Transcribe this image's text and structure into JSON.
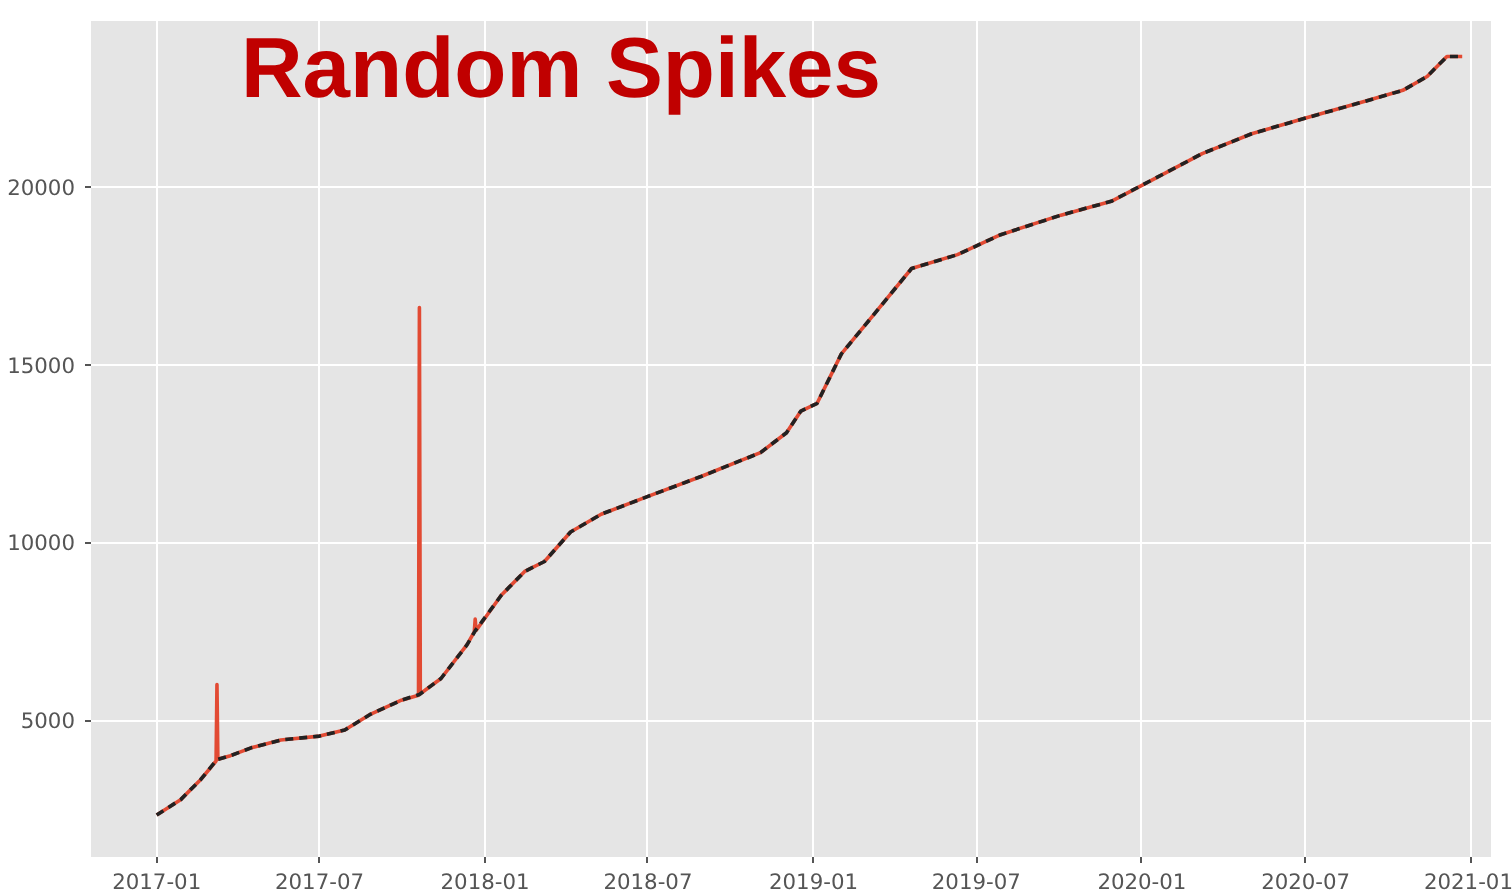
{
  "chart_data": {
    "type": "line",
    "title": "Random Spikes",
    "xlim": [
      "2016-10-20",
      "2021-01-23"
    ],
    "ylim": [
      1150,
      24660
    ],
    "xticks": [
      "2017-01",
      "2017-07",
      "2018-01",
      "2018-07",
      "2019-01",
      "2019-07",
      "2020-01",
      "2020-07",
      "2021-01"
    ],
    "yticks": [
      5000,
      10000,
      15000,
      20000
    ],
    "grid": true,
    "series": [
      {
        "color": "#e24a33",
        "line_style": "solid",
        "x": [
          "2017-01-01",
          "2017-01-28",
          "2017-02-19",
          "2017-03-08",
          "2017-03-09",
          "2017-03-10",
          "2017-03-24",
          "2017-04-16",
          "2017-05-19",
          "2017-07-01",
          "2017-07-29",
          "2017-08-27",
          "2017-09-30",
          "2017-10-19",
          "2017-10-20",
          "2017-10-21",
          "2017-11-13",
          "2017-12-12",
          "2017-12-20",
          "2017-12-21",
          "2017-12-22",
          "2018-01-19",
          "2018-02-14",
          "2018-03-08",
          "2018-04-06",
          "2018-05-10",
          "2018-07-01",
          "2018-08-29",
          "2018-11-03",
          "2018-12-02",
          "2018-12-18",
          "2019-01-05",
          "2019-02-01",
          "2019-03-06",
          "2019-04-20",
          "2019-06-10",
          "2019-07-28",
          "2019-10-03",
          "2019-11-28",
          "2020-01-01",
          "2020-03-08",
          "2020-05-02",
          "2020-07-01",
          "2020-09-02",
          "2020-10-17",
          "2020-11-13",
          "2020-12-05",
          "2020-12-22"
        ],
        "values": [
          2330,
          2770,
          3330,
          3850,
          6000,
          3900,
          4000,
          4220,
          4440,
          4550,
          4720,
          5170,
          5560,
          5700,
          16600,
          5740,
          6170,
          7120,
          7480,
          7840,
          7520,
          8510,
          9180,
          9460,
          10290,
          10790,
          11290,
          11850,
          12520,
          13080,
          13690,
          13910,
          15300,
          16310,
          17700,
          18090,
          18650,
          19200,
          19590,
          20040,
          20930,
          21490,
          21930,
          22380,
          22710,
          23100,
          23660,
          23660
        ]
      },
      {
        "color": "#222222",
        "line_style": "dashed",
        "x": [
          "2017-01-01",
          "2017-01-28",
          "2017-02-19",
          "2017-03-09",
          "2017-03-24",
          "2017-04-16",
          "2017-05-19",
          "2017-07-01",
          "2017-07-29",
          "2017-08-27",
          "2017-09-30",
          "2017-10-20",
          "2017-11-13",
          "2017-12-12",
          "2017-12-21",
          "2018-01-19",
          "2018-02-14",
          "2018-03-08",
          "2018-04-06",
          "2018-05-10",
          "2018-07-01",
          "2018-08-29",
          "2018-11-03",
          "2018-12-02",
          "2018-12-18",
          "2019-01-05",
          "2019-02-01",
          "2019-03-06",
          "2019-04-20",
          "2019-06-10",
          "2019-07-28",
          "2019-10-03",
          "2019-11-28",
          "2020-01-01",
          "2020-03-08",
          "2020-05-02",
          "2020-07-01",
          "2020-09-02",
          "2020-10-17",
          "2020-11-13",
          "2020-12-05",
          "2020-12-22"
        ],
        "values": [
          2330,
          2770,
          3330,
          3890,
          4000,
          4220,
          4440,
          4550,
          4720,
          5170,
          5560,
          5720,
          6170,
          7120,
          7510,
          8510,
          9180,
          9460,
          10290,
          10790,
          11290,
          11850,
          12520,
          13080,
          13690,
          13910,
          15300,
          16310,
          17700,
          18090,
          18650,
          19200,
          19590,
          20040,
          20930,
          21490,
          21930,
          22380,
          22710,
          23100,
          23660,
          23660
        ]
      }
    ]
  }
}
